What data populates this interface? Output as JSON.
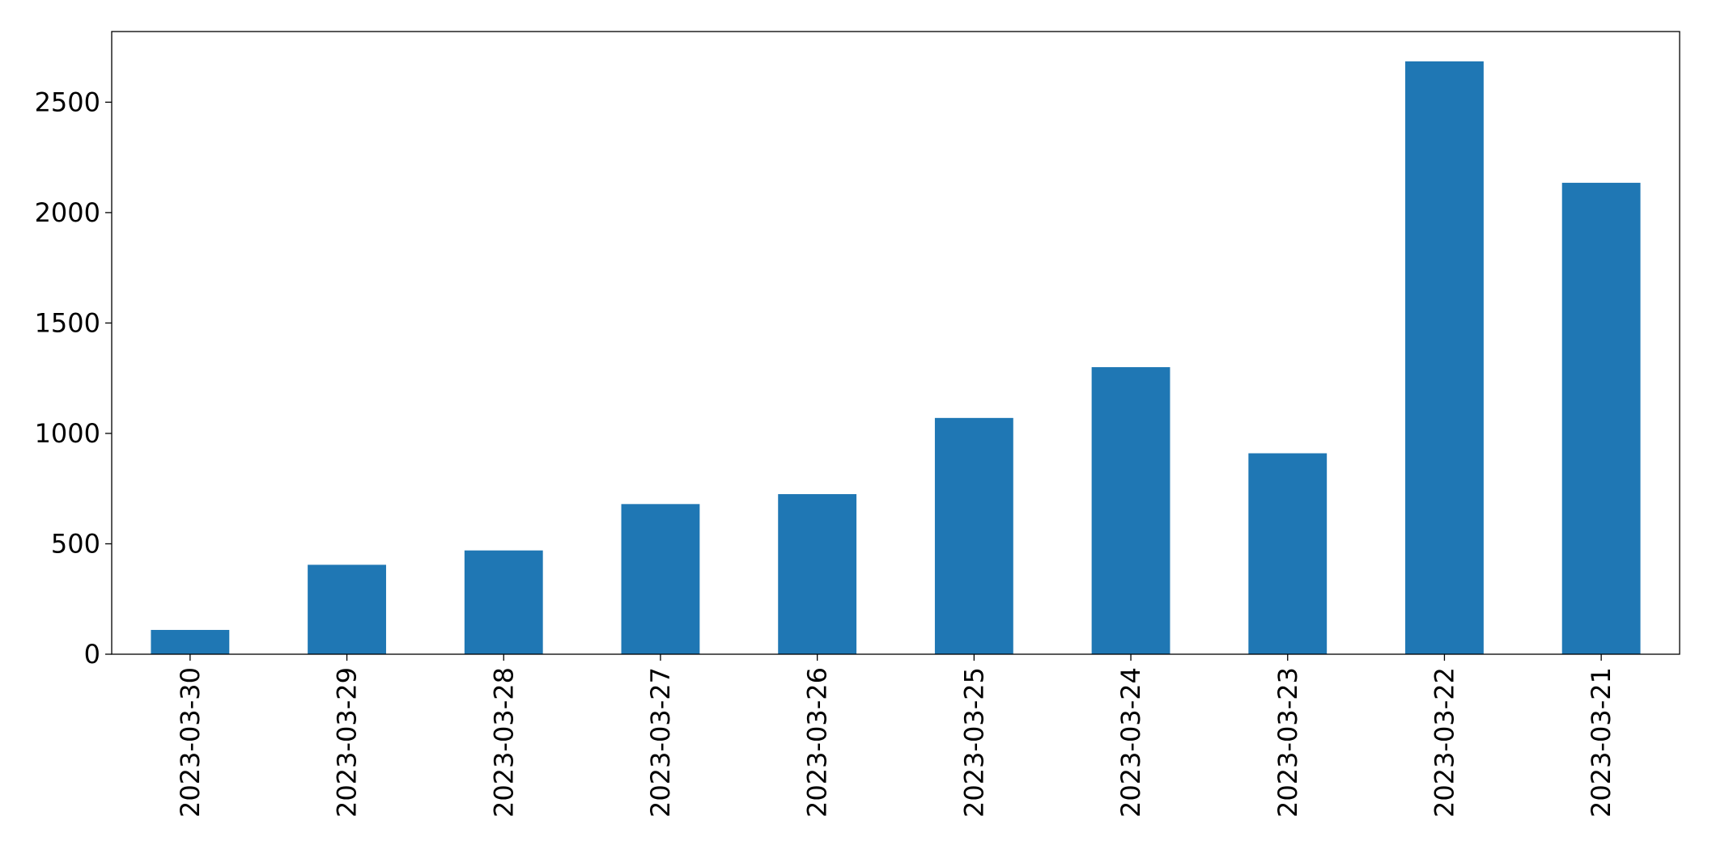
{
  "chart_data": {
    "type": "bar",
    "categories": [
      "2023-03-30",
      "2023-03-29",
      "2023-03-28",
      "2023-03-27",
      "2023-03-26",
      "2023-03-25",
      "2023-03-24",
      "2023-03-23",
      "2023-03-22",
      "2023-03-21"
    ],
    "values": [
      110,
      405,
      470,
      680,
      725,
      1070,
      1300,
      910,
      2685,
      2135
    ],
    "color": "#1f77b4",
    "ylim": [
      0,
      2820
    ],
    "yticks": [
      0,
      500,
      1000,
      1500,
      2000,
      2500
    ],
    "grid": false
  }
}
